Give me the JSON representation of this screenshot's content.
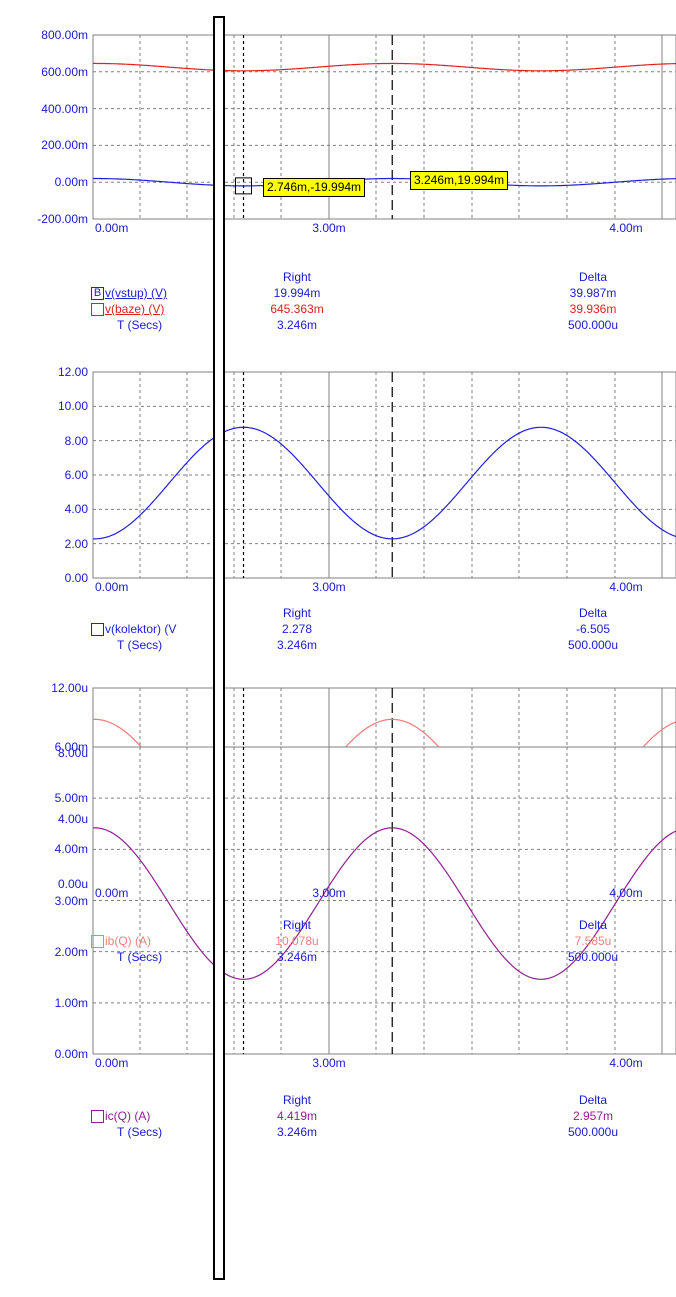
{
  "cursor": {
    "left_x": 2.746,
    "right_x": 3.246,
    "tooltip_left": "2.746m,-19.994m",
    "tooltip_right": "3.246m,19.994m"
  },
  "colors": {
    "axis_text": "#1a1ad0",
    "grid": "#888888"
  },
  "x_axis": {
    "unit": "ms",
    "range": [
      2.24,
      4.2
    ],
    "ticks": [
      "0.00m",
      "3.00m",
      "4.00m"
    ]
  },
  "chart_data": [
    {
      "type": "line",
      "y_ticks": [
        "800.00m",
        "600.00m",
        "400.00m",
        "200.00m",
        "0.00m",
        "-200.00m"
      ],
      "ylim": [
        -200,
        800
      ],
      "series": [
        {
          "name": "v(vstup) (V)",
          "color": "#2020d8",
          "offset": 0,
          "amplitude": 20,
          "unit": "mV"
        },
        {
          "name": "v(baze) (V)",
          "color": "#e02020",
          "offset": 625.4,
          "amplitude": 20,
          "unit": "mV"
        }
      ],
      "readout": {
        "right_label": "Right",
        "delta_label": "Delta",
        "time_label": "T (Secs)",
        "rows": [
          {
            "swatch": "B",
            "name": "v(vstup) (V)",
            "right": "19.994m",
            "delta": "39.987m",
            "color": "#2020d8"
          },
          {
            "swatch": "",
            "name": "v(baze) (V)",
            "right": "645.363m",
            "delta": "39.936m",
            "color": "#e02020"
          }
        ],
        "time_right": "3.246m",
        "time_delta": "500.000u"
      }
    },
    {
      "type": "line",
      "y_ticks": [
        "12.00",
        "10.00",
        "8.00",
        "6.00",
        "4.00",
        "2.00",
        "0.00"
      ],
      "ylim": [
        0,
        12
      ],
      "series": [
        {
          "name": "v(kolektor) (V)",
          "color": "#2020e0",
          "offset": 5.53,
          "amplitude": -3.25,
          "unit": "V"
        }
      ],
      "readout": {
        "right_label": "Right",
        "delta_label": "Delta",
        "time_label": "T (Secs)",
        "rows": [
          {
            "swatch": "",
            "name": "v(kolektor) (V",
            "right": "2.278",
            "delta": "-6.505",
            "color": "#2020e0"
          }
        ],
        "time_right": "3.246m",
        "time_delta": "500.000u"
      }
    },
    {
      "type": "line",
      "y_ticks": [
        "12.00u",
        "8.00u",
        "4.00u",
        "0.00u"
      ],
      "ylim": [
        0,
        12
      ],
      "series": [
        {
          "name": "ib(Q) (A)",
          "color": "#f07a7a",
          "offset": 6.29,
          "amplitude": 3.79,
          "unit": "uA"
        }
      ],
      "readout": {
        "right_label": "Right",
        "delta_label": "Delta",
        "time_label": "T (Secs)",
        "rows": [
          {
            "swatch": "",
            "name": "ib(Q) (A)",
            "right": "10.078u",
            "delta": "7.585u",
            "color": "#f08080"
          }
        ],
        "time_right": "3.246m",
        "time_delta": "500.000u"
      }
    },
    {
      "type": "line",
      "y_ticks": [
        "6.00m",
        "5.00m",
        "4.00m",
        "3.00m",
        "2.00m",
        "1.00m",
        "0.00m"
      ],
      "ylim": [
        0,
        6
      ],
      "series": [
        {
          "name": "ic(Q) (A)",
          "color": "#902090",
          "offset": 2.94,
          "amplitude": 1.48,
          "unit": "mA"
        }
      ],
      "readout": {
        "right_label": "Right",
        "delta_label": "Delta",
        "time_label": "T (Secs)",
        "rows": [
          {
            "swatch": "",
            "name": "ic(Q) (A)",
            "right": "4.419m",
            "delta": "2.957m",
            "color": "#902090"
          }
        ],
        "time_right": "3.246m",
        "time_delta": "500.000u"
      }
    }
  ]
}
